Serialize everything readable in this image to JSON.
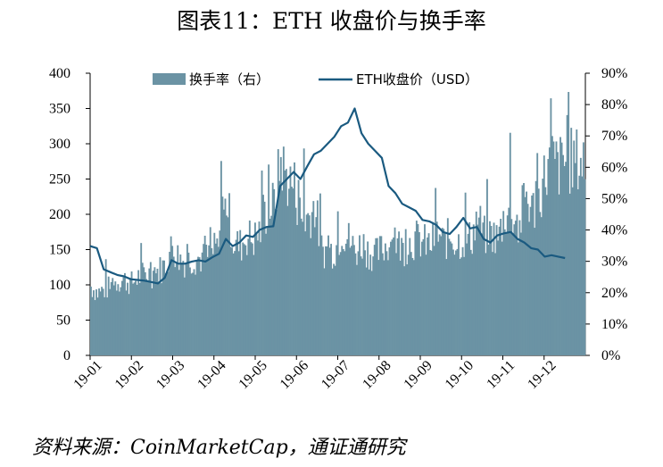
{
  "title": "图表11：ETH 收盘价与换手率",
  "source": "资料来源：CoinMarketCap，通证通研究",
  "chart_data": {
    "type": "bar+line",
    "x_tick_labels": [
      "19-01",
      "19-02",
      "19-03",
      "19-04",
      "19-05",
      "19-06",
      "19-07",
      "19-08",
      "19-09",
      "19-10",
      "19-11",
      "19-12"
    ],
    "left_axis": {
      "ticks": [
        "0",
        "50",
        "100",
        "150",
        "200",
        "250",
        "300",
        "350",
        "400"
      ],
      "ylim": [
        0,
        400
      ]
    },
    "right_axis": {
      "ticks": [
        "0%",
        "10%",
        "20%",
        "30%",
        "40%",
        "50%",
        "60%",
        "70%",
        "80%",
        "90%"
      ],
      "ylim": [
        0,
        90
      ]
    },
    "legend": [
      {
        "label": "换手率（右）",
        "kind": "bar",
        "color": "#6b93a4"
      },
      {
        "label": "ETH收盘价（USD）",
        "kind": "line",
        "color": "#1a5a80"
      }
    ],
    "legend_position": "top-center",
    "series": [
      {
        "name": "ETH收盘价（USD）",
        "axis": "left",
        "step_days": 5,
        "values": [
          155,
          152,
          122,
          118,
          114,
          112,
          108,
          107,
          106,
          104,
          102,
          110,
          135,
          130,
          130,
          133,
          135,
          133,
          139,
          144,
          165,
          155,
          160,
          170,
          168,
          178,
          182,
          183,
          240,
          250,
          260,
          250,
          268,
          285,
          290,
          300,
          310,
          325,
          330,
          350,
          315,
          300,
          290,
          280,
          240,
          230,
          215,
          210,
          205,
          192,
          190,
          185,
          175,
          172,
          182,
          195,
          180,
          182,
          165,
          160,
          170,
          173,
          175,
          165,
          160,
          152,
          150,
          140,
          142,
          140,
          138
        ]
      },
      {
        "name": "换手率（右）",
        "axis": "right",
        "step_days": 5,
        "values": [
          22,
          20,
          21,
          22,
          24,
          24,
          23,
          25,
          26,
          26,
          27,
          29,
          35,
          31,
          30,
          31,
          31,
          31,
          33,
          35,
          50,
          36,
          35,
          38,
          37,
          40,
          47,
          48,
          62,
          56,
          54,
          43,
          44,
          48,
          34,
          33,
          34,
          40,
          37,
          33,
          36,
          33,
          32,
          34,
          36,
          36,
          34,
          36,
          37,
          36,
          35,
          39,
          36,
          38,
          36,
          37,
          37,
          44,
          38,
          39,
          37,
          45,
          47,
          38,
          52,
          46,
          50,
          58,
          62,
          60,
          62
        ],
        "spikes": [
          {
            "date": "19-04",
            "value": 62
          },
          {
            "date": "19-06",
            "value": 66
          },
          {
            "date": "19-11",
            "value": 71
          },
          {
            "date": "19-12",
            "value": 82
          }
        ]
      }
    ],
    "grid": false
  }
}
